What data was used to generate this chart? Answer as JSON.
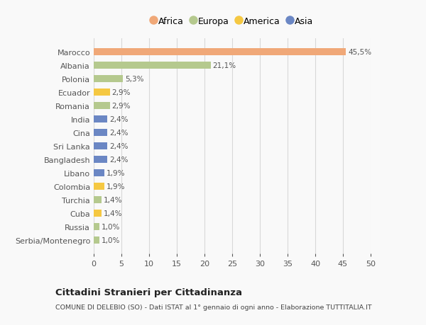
{
  "categories": [
    "Serbia/Montenegro",
    "Russia",
    "Cuba",
    "Turchia",
    "Colombia",
    "Libano",
    "Bangladesh",
    "Sri Lanka",
    "Cina",
    "India",
    "Romania",
    "Ecuador",
    "Polonia",
    "Albania",
    "Marocco"
  ],
  "values": [
    1.0,
    1.0,
    1.4,
    1.4,
    1.9,
    1.9,
    2.4,
    2.4,
    2.4,
    2.4,
    2.9,
    2.9,
    5.3,
    21.1,
    45.5
  ],
  "labels": [
    "1,0%",
    "1,0%",
    "1,4%",
    "1,4%",
    "1,9%",
    "1,9%",
    "2,4%",
    "2,4%",
    "2,4%",
    "2,4%",
    "2,9%",
    "2,9%",
    "5,3%",
    "21,1%",
    "45,5%"
  ],
  "colors": [
    "#b5c98e",
    "#b5c98e",
    "#f5c842",
    "#b5c98e",
    "#f5c842",
    "#6b87c4",
    "#6b87c4",
    "#6b87c4",
    "#6b87c4",
    "#6b87c4",
    "#b5c98e",
    "#f5c842",
    "#b5c98e",
    "#b5c98e",
    "#f0a878"
  ],
  "legend_labels": [
    "Africa",
    "Europa",
    "America",
    "Asia"
  ],
  "legend_colors": [
    "#f0a878",
    "#b5c98e",
    "#f5c842",
    "#6b87c4"
  ],
  "xlim": [
    0,
    50
  ],
  "xticks": [
    0,
    5,
    10,
    15,
    20,
    25,
    30,
    35,
    40,
    45,
    50
  ],
  "title": "Cittadini Stranieri per Cittadinanza",
  "subtitle": "COMUNE DI DELEBIO (SO) - Dati ISTAT al 1° gennaio di ogni anno - Elaborazione TUTTITALIA.IT",
  "bg_color": "#f9f9f9",
  "grid_color": "#d8d8d8",
  "bar_height": 0.55
}
